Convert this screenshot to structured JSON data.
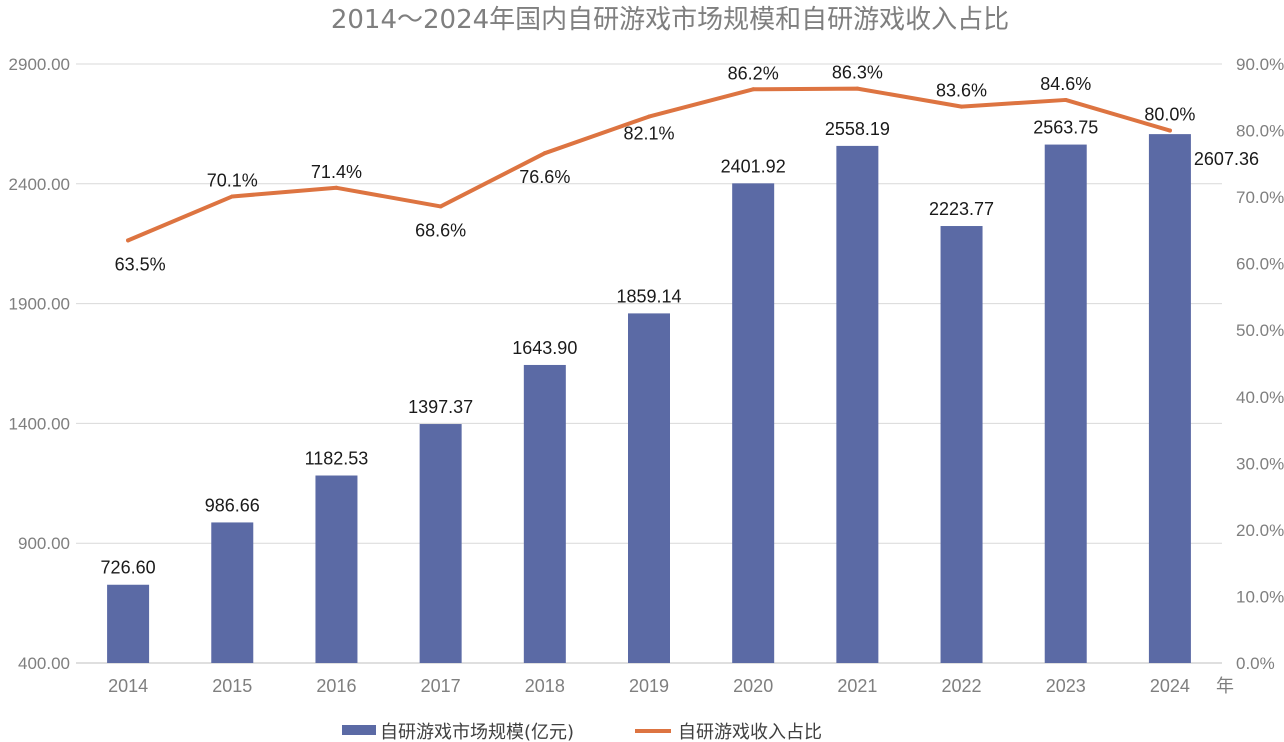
{
  "chart_data": {
    "type": "bar+line",
    "title": "2014～2024年国内自研游戏市场规模和自研游戏收入占比",
    "xunit": "年",
    "categories": [
      "2014",
      "2015",
      "2016",
      "2017",
      "2018",
      "2019",
      "2020",
      "2021",
      "2022",
      "2023",
      "2024"
    ],
    "series": [
      {
        "name": "自研游戏市场规模(亿元)",
        "type": "bar",
        "axis": "left",
        "values": [
          726.6,
          986.66,
          1182.53,
          1397.37,
          1643.9,
          1859.14,
          2401.92,
          2558.19,
          2223.77,
          2563.75,
          2607.36
        ],
        "labels": [
          "726.60",
          "986.66",
          "1182.53",
          "1397.37",
          "1643.90",
          "1859.14",
          "2401.92",
          "2558.19",
          "2223.77",
          "2563.75",
          "2607.36"
        ],
        "color": "#5b6aa5"
      },
      {
        "name": "自研游戏收入占比",
        "type": "line",
        "axis": "right",
        "values": [
          63.5,
          70.1,
          71.4,
          68.6,
          76.6,
          82.1,
          86.2,
          86.3,
          83.6,
          84.6,
          80.0
        ],
        "labels": [
          "63.5%",
          "70.1%",
          "71.4%",
          "68.6%",
          "76.6%",
          "82.1%",
          "86.2%",
          "86.3%",
          "83.6%",
          "84.6%",
          "80.0%"
        ],
        "color": "#dd7441"
      }
    ],
    "left_axis": {
      "ylim": [
        400,
        2900
      ],
      "ticks": [
        400,
        900,
        1400,
        1900,
        2400,
        2900
      ],
      "tick_labels": [
        "400.00",
        "900.00",
        "1400.00",
        "1900.00",
        "2400.00",
        "2900.00"
      ]
    },
    "right_axis": {
      "ylim": [
        0,
        90
      ],
      "ticks": [
        0,
        10,
        20,
        30,
        40,
        50,
        60,
        70,
        80,
        90
      ],
      "tick_labels": [
        "0.0%",
        "10.0%",
        "20.0%",
        "30.0%",
        "40.0%",
        "50.0%",
        "60.0%",
        "70.0%",
        "80.0%",
        "90.0%"
      ]
    },
    "grid": true,
    "legend_position": "bottom"
  }
}
